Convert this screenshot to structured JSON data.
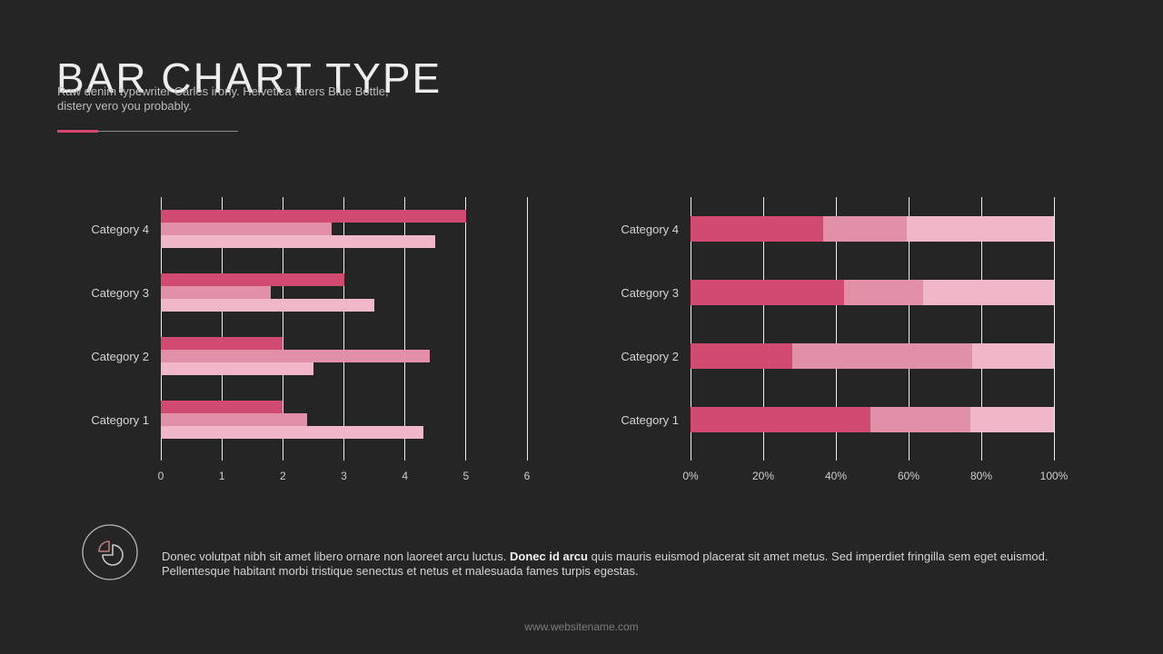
{
  "slide": {
    "title": "BAR CHART TYPE",
    "subtitle_line1": "Raw denim typewriter Carles irony. Helvetica farers Blue Bottle,",
    "subtitle_line2": "distery vero you probably.",
    "note_pre": "Donec volutpat nibh sit amet libero ornare non laoreet arcu luctus. ",
    "note_bold": "Donec id arcu",
    "note_post": " quis mauris euismod placerat sit amet metus. Sed imperdiet fringilla sem eget euismod. Pellentesque habitant morbi tristique senectus et netus et malesuada fames turpis egestas.",
    "footer": "www.websitename.com",
    "note_icon": "pie-chart-icon"
  },
  "colors": {
    "background": "#262525",
    "accent": "#d6476f",
    "divider_line": "#8f8c8c",
    "gridline": "#f1eef0",
    "bar_dark": "#d14a72",
    "bar_medium": "#e28fa8",
    "bar_light": "#f0b7c8"
  },
  "chart_data": [
    {
      "type": "bar",
      "subtype": "grouped",
      "orientation": "horizontal",
      "title": "",
      "xlabel": "",
      "ylabel": "",
      "grid": true,
      "legend": "none",
      "categories": [
        "Category 4",
        "Category 3",
        "Category 2",
        "Category 1"
      ],
      "series": [
        {
          "name": "series-1",
          "color": "#d14a72",
          "values": [
            5.0,
            3.0,
            2.0,
            2.0
          ]
        },
        {
          "name": "series-2",
          "color": "#e28fa8",
          "values": [
            2.8,
            1.8,
            4.4,
            2.4
          ]
        },
        {
          "name": "series-3",
          "color": "#f0b7c8",
          "values": [
            4.5,
            3.5,
            2.5,
            4.3
          ]
        }
      ],
      "xlim": [
        0,
        6
      ],
      "ticks": [
        "0",
        "1",
        "2",
        "3",
        "4",
        "5",
        "6"
      ]
    },
    {
      "type": "bar",
      "subtype": "stacked-100",
      "orientation": "horizontal",
      "title": "",
      "xlabel": "",
      "ylabel": "",
      "grid": true,
      "legend": "none",
      "categories": [
        "Category 4",
        "Category 3",
        "Category 2",
        "Category 1"
      ],
      "series": [
        {
          "name": "segment-1",
          "color": "#d14a72",
          "values": [
            36.6,
            42.2,
            28.1,
            49.4
          ]
        },
        {
          "name": "segment-2",
          "color": "#e28fa8",
          "values": [
            22.8,
            21.7,
            49.4,
            27.6
          ]
        },
        {
          "name": "segment-3",
          "color": "#f0b7c8",
          "values": [
            40.6,
            36.1,
            22.5,
            23.0
          ]
        }
      ],
      "xlim": [
        0,
        100
      ],
      "ticks": [
        "0%",
        "20%",
        "40%",
        "60%",
        "80%",
        "100%"
      ]
    }
  ]
}
